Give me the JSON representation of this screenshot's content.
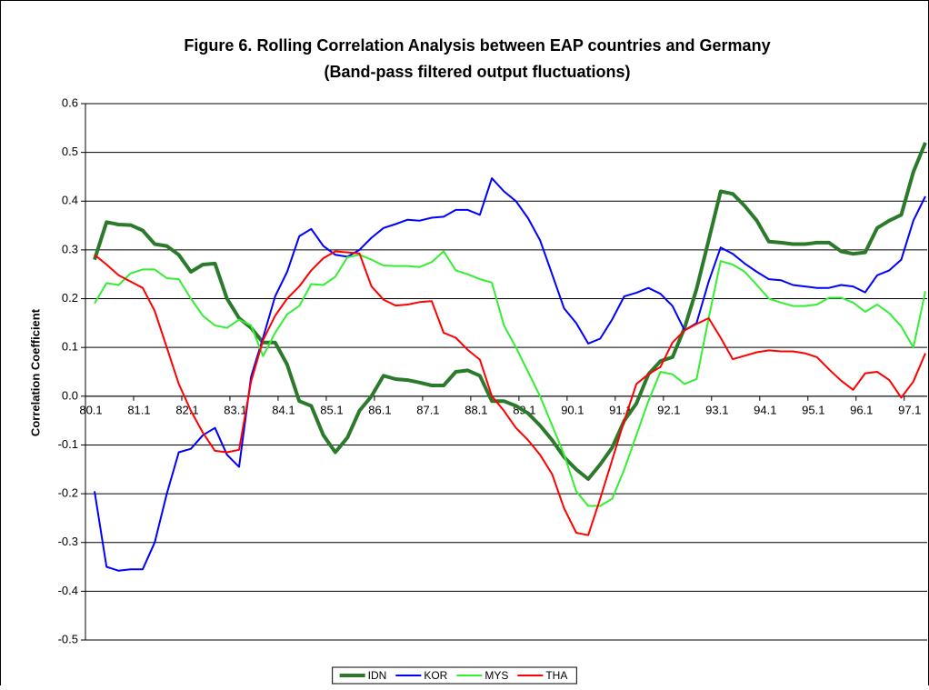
{
  "chart_data": {
    "type": "line",
    "title": "Figure 6. Rolling Correlation Analysis between EAP countries and Germany",
    "subtitle": "(Band-pass filtered output fluctuations)",
    "y_label": "Correlation Coefficient",
    "categories": [
      "80.1",
      null,
      null,
      null,
      "81.1",
      null,
      null,
      null,
      "82.1",
      null,
      null,
      null,
      "83.1",
      null,
      null,
      null,
      "84.1",
      null,
      null,
      null,
      "85.1",
      null,
      null,
      null,
      "86.1",
      null,
      null,
      null,
      "87.1",
      null,
      null,
      null,
      "88.1",
      null,
      null,
      null,
      "89.1",
      null,
      null,
      null,
      "90.1",
      null,
      null,
      null,
      "91.1",
      null,
      null,
      null,
      "92.1",
      null,
      null,
      null,
      "93.1",
      null,
      null,
      null,
      "94.1",
      null,
      null,
      null,
      "95.1",
      null,
      null,
      null,
      "96.1",
      null,
      null,
      null,
      "97.1",
      null
    ],
    "ylim": [
      -0.5,
      0.6
    ],
    "yticks": [
      -0.5,
      -0.4,
      -0.3,
      -0.2,
      -0.1,
      {
        "value": 0,
        "label": "0.0"
      },
      0.1,
      0.2,
      0.3,
      0.4,
      0.5,
      0.6
    ],
    "grid": true,
    "legend": "bottom",
    "series": [
      {
        "name": "IDN",
        "color": "#2b7a2b",
        "values": [
          0.28,
          0.357,
          0.352,
          0.351,
          0.34,
          0.312,
          0.308,
          0.29,
          0.255,
          0.27,
          0.272,
          0.2,
          0.16,
          0.14,
          0.11,
          0.11,
          0.065,
          -0.01,
          -0.02,
          -0.08,
          -0.115,
          -0.085,
          -0.03,
          0.0,
          0.042,
          0.035,
          0.033,
          0.028,
          0.022,
          0.022,
          0.05,
          0.053,
          0.042,
          -0.01,
          -0.01,
          -0.02,
          -0.035,
          -0.06,
          -0.09,
          -0.125,
          -0.15,
          -0.17,
          -0.14,
          -0.105,
          -0.05,
          -0.015,
          0.045,
          0.072,
          0.08,
          0.14,
          0.22,
          0.32,
          0.42,
          0.415,
          0.39,
          0.36,
          0.317,
          0.315,
          0.312,
          0.312,
          0.315,
          0.315,
          0.297,
          0.292,
          0.295,
          0.345,
          0.36,
          0.372,
          0.46,
          0.52
        ]
      },
      {
        "name": "KOR",
        "color": "#0000ff",
        "values": [
          -0.195,
          -0.35,
          -0.358,
          -0.355,
          -0.355,
          -0.3,
          -0.2,
          -0.115,
          -0.108,
          -0.08,
          -0.065,
          -0.12,
          -0.145,
          0.04,
          0.12,
          0.205,
          0.255,
          0.328,
          0.343,
          0.308,
          0.29,
          0.286,
          0.3,
          0.325,
          0.345,
          0.353,
          0.362,
          0.36,
          0.366,
          0.368,
          0.382,
          0.382,
          0.372,
          0.447,
          0.42,
          0.4,
          0.365,
          0.32,
          0.25,
          0.18,
          0.15,
          0.108,
          0.118,
          0.158,
          0.205,
          0.212,
          0.222,
          0.21,
          0.185,
          0.135,
          0.15,
          0.235,
          0.305,
          0.292,
          0.272,
          0.255,
          0.24,
          0.238,
          0.228,
          0.225,
          0.222,
          0.222,
          0.228,
          0.225,
          0.213,
          0.248,
          0.258,
          0.28,
          0.36,
          0.41
        ]
      },
      {
        "name": "MYS",
        "color": "#33ee33",
        "values": [
          0.19,
          0.232,
          0.228,
          0.252,
          0.26,
          0.26,
          0.242,
          0.24,
          0.2,
          0.165,
          0.145,
          0.14,
          0.157,
          0.145,
          0.082,
          0.13,
          0.168,
          0.185,
          0.23,
          0.228,
          0.245,
          0.285,
          0.29,
          0.28,
          0.268,
          0.267,
          0.267,
          0.265,
          0.275,
          0.297,
          0.258,
          0.25,
          0.24,
          0.233,
          0.145,
          0.1,
          0.05,
          0.0,
          -0.06,
          -0.12,
          -0.195,
          -0.225,
          -0.225,
          -0.21,
          -0.15,
          -0.08,
          -0.01,
          0.05,
          0.045,
          0.025,
          0.035,
          0.16,
          0.277,
          0.27,
          0.255,
          0.228,
          0.2,
          0.192,
          0.185,
          0.185,
          0.188,
          0.202,
          0.202,
          0.192,
          0.173,
          0.188,
          0.17,
          0.143,
          0.1,
          0.215
        ]
      },
      {
        "name": "THA",
        "color": "#ff0000",
        "values": [
          0.29,
          0.27,
          0.248,
          0.235,
          0.222,
          0.175,
          0.1,
          0.025,
          -0.03,
          -0.075,
          -0.112,
          -0.115,
          -0.11,
          0.03,
          0.115,
          0.165,
          0.2,
          0.225,
          0.258,
          0.283,
          0.297,
          0.295,
          0.293,
          0.225,
          0.198,
          0.186,
          0.188,
          0.193,
          0.195,
          0.13,
          0.12,
          0.095,
          0.075,
          0.0,
          -0.03,
          -0.065,
          -0.09,
          -0.12,
          -0.16,
          -0.23,
          -0.28,
          -0.285,
          -0.21,
          -0.13,
          -0.05,
          0.025,
          0.045,
          0.06,
          0.11,
          0.135,
          0.148,
          0.16,
          0.12,
          0.076,
          0.083,
          0.09,
          0.094,
          0.092,
          0.092,
          0.088,
          0.08,
          0.055,
          0.032,
          0.013,
          0.047,
          0.05,
          0.033,
          -0.003,
          0.03,
          0.088
        ]
      }
    ]
  }
}
